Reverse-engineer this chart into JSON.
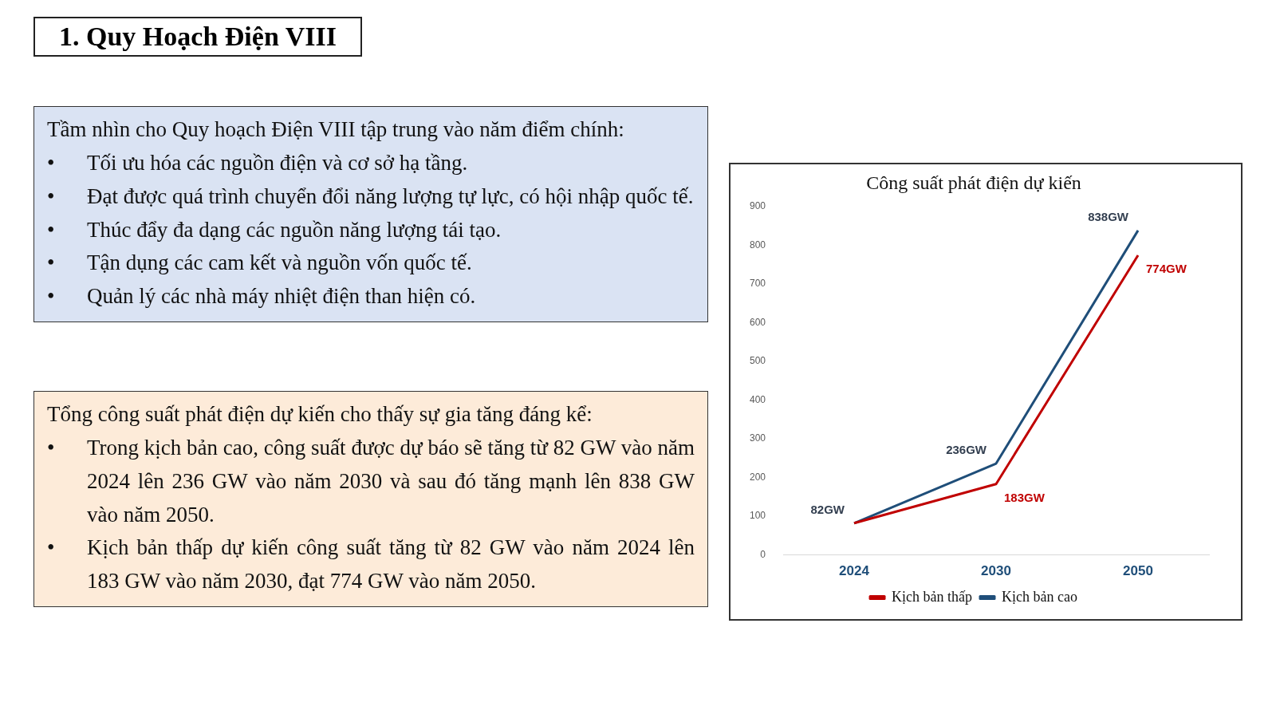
{
  "chart_data": {
    "type": "line",
    "title": "Công suất phát điện dự kiến",
    "categories": [
      "2024",
      "2030",
      "2050"
    ],
    "series": [
      {
        "name": "Kịch bản thấp",
        "color": "#c00000",
        "values": [
          82,
          183,
          774
        ],
        "value_labels": [
          null,
          "183GW",
          "774GW"
        ]
      },
      {
        "name": "Kịch bản cao",
        "color": "#1f4e79",
        "values": [
          82,
          236,
          838
        ],
        "value_labels": [
          "82GW",
          "236GW",
          "838GW"
        ]
      }
    ],
    "ylim": [
      0,
      900
    ],
    "yticks": [
      0,
      100,
      200,
      300,
      400,
      500,
      600,
      700,
      800,
      900
    ],
    "grid": false,
    "legend": "bottom",
    "marker": "none",
    "line_style": "solid",
    "annotations": [
      "1. Quy Hoạch Điện VIII",
      "Tầm nhìn cho Quy hoạch Điện VIII tập trung vào năm điểm chính:\n•\tTối ưu hóa các nguồn điện và cơ sở hạ tầng.\n•\tĐạt được quá trình chuyển đổi năng lượng tự lực, có hội nhập quốc tế.\n•\tThúc đẩy đa dạng các nguồn năng lượng tái tạo.\n•\tTận dụng các cam kết và nguồn vốn quốc tế.\n•\tQuản lý các nhà máy nhiệt điện than hiện có.",
      "Tổng công suất phát điện dự kiến cho thấy sự gia tăng đáng kể:\n•\tTrong kịch bản cao, công suất được dự báo sẽ tăng từ 82 GW vào năm 2024 lên 236 GW vào năm 2030 và sau đó tăng mạnh lên 838 GW vào năm 2050.\n•\tKịch bản thấp dự kiến công suất tăng từ 82 GW vào năm 2024 lên 183 GW vào năm 2030, đạt 774 GW vào năm 2050."
    ]
  }
}
